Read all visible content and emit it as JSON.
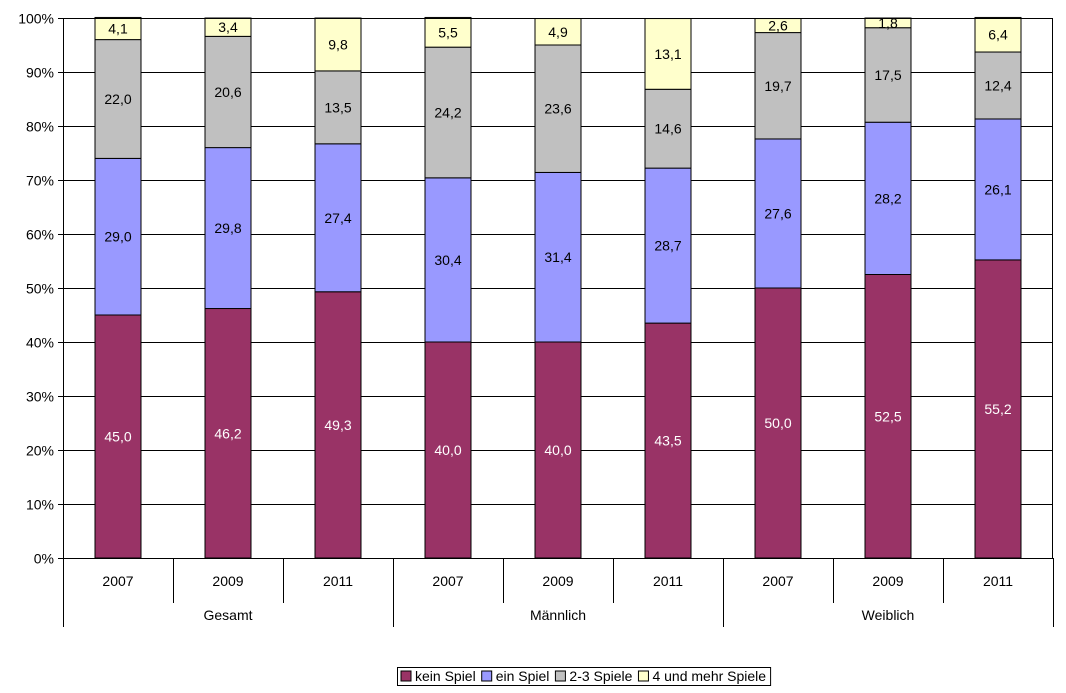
{
  "chart_data": {
    "type": "bar",
    "stacked": true,
    "percent_stacked": true,
    "groups": [
      {
        "label": "Gesamt",
        "categories": [
          "2007",
          "2009",
          "2011"
        ]
      },
      {
        "label": "Männlich",
        "categories": [
          "2007",
          "2009",
          "2011"
        ]
      },
      {
        "label": "Weiblich",
        "categories": [
          "2007",
          "2009",
          "2011"
        ]
      }
    ],
    "series": [
      {
        "name": "kein Spiel",
        "color": "#993366",
        "label_color": "#ffffff",
        "values": [
          45.0,
          46.2,
          49.3,
          40.0,
          40.0,
          43.5,
          50.0,
          52.5,
          55.2
        ],
        "labels": [
          "45,0",
          "46,2",
          "49,3",
          "40,0",
          "40,0",
          "43,5",
          "50,0",
          "52,5",
          "55,2"
        ]
      },
      {
        "name": "ein Spiel",
        "color": "#9999ff",
        "label_color": "#000000",
        "values": [
          29.0,
          29.8,
          27.4,
          30.4,
          31.4,
          28.7,
          27.6,
          28.2,
          26.1
        ],
        "labels": [
          "29,0",
          "29,8",
          "27,4",
          "30,4",
          "31,4",
          "28,7",
          "27,6",
          "28,2",
          "26,1"
        ]
      },
      {
        "name": "2-3 Spiele",
        "color": "#c0c0c0",
        "label_color": "#000000",
        "values": [
          22.0,
          20.6,
          13.5,
          24.2,
          23.6,
          14.6,
          19.7,
          17.5,
          12.4
        ],
        "labels": [
          "22,0",
          "20,6",
          "13,5",
          "24,2",
          "23,6",
          "14,6",
          "19,7",
          "17,5",
          "12,4"
        ]
      },
      {
        "name": "4 und mehr Spiele",
        "color": "#ffffcc",
        "label_color": "#000000",
        "values": [
          4.1,
          3.4,
          9.8,
          5.5,
          4.9,
          13.1,
          2.6,
          1.8,
          6.4
        ],
        "labels": [
          "4,1",
          "3,4",
          "9,8",
          "5,5",
          "4,9",
          "13,1",
          "2,6",
          "1,8",
          "6,4"
        ]
      }
    ],
    "yaxis": {
      "min": 0,
      "max": 100,
      "step": 10,
      "tick_labels": [
        "0%",
        "10%",
        "20%",
        "30%",
        "40%",
        "50%",
        "60%",
        "70%",
        "80%",
        "90%",
        "100%"
      ]
    },
    "grid": true,
    "legend_position": "bottom"
  }
}
